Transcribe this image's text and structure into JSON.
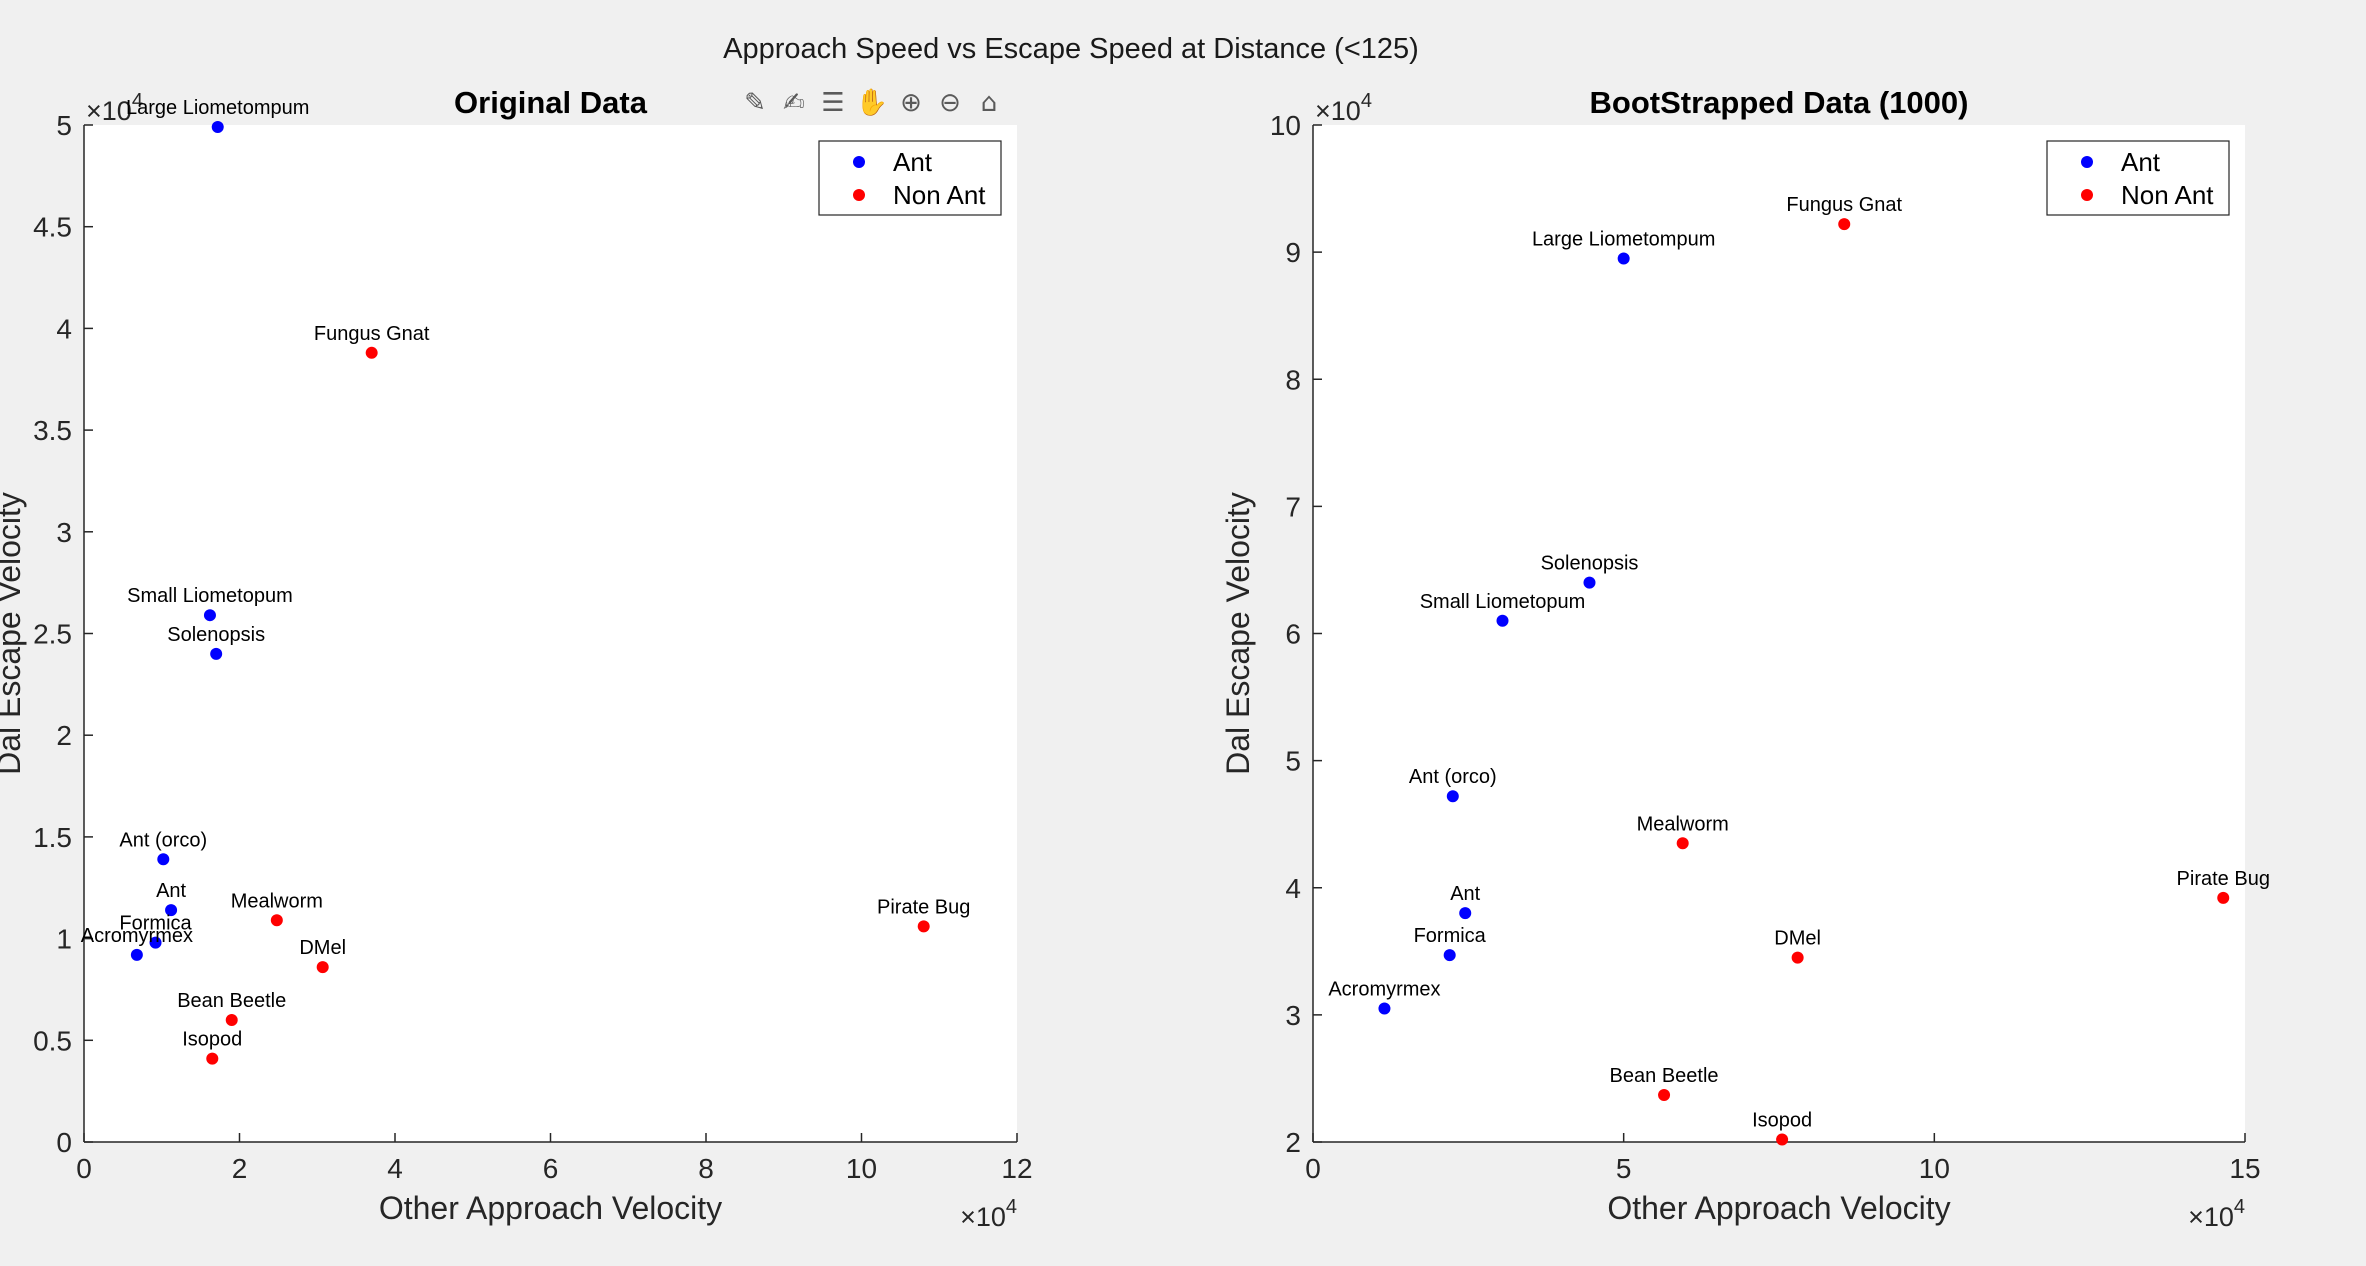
{
  "figure": {
    "title": "Approach Speed vs Escape Speed at Distance (<125)"
  },
  "toolbar": {
    "icons": [
      "brush-edit-icon",
      "brush-icon",
      "datatip-icon",
      "pan-icon",
      "zoom-in-icon",
      "zoom-out-icon",
      "home-icon"
    ],
    "glyphs": [
      "✎",
      "✍",
      "☰",
      "✋",
      "⊕",
      "⊖",
      "⌂"
    ]
  },
  "colors": {
    "ant": "#0000ff",
    "non_ant": "#ff0000",
    "axes_bg": "#ffffff",
    "figure_bg": "#f0f0f0"
  },
  "chart_data": [
    {
      "type": "scatter",
      "title": "Original Data",
      "xlabel": "Other Approach Velocity",
      "ylabel": "Dal Escape Velocity",
      "x_multiplier": "×10",
      "x_exponent": "4",
      "y_multiplier": "×10",
      "y_exponent": "4",
      "xlim": [
        0,
        12
      ],
      "ylim": [
        0,
        5
      ],
      "xticks": [
        0,
        2,
        4,
        6,
        8,
        10,
        12
      ],
      "xtick_labels": [
        "0",
        "2",
        "4",
        "6",
        "8",
        "10",
        "12"
      ],
      "yticks": [
        0,
        0.5,
        1,
        1.5,
        2,
        2.5,
        3,
        3.5,
        4,
        4.5,
        5
      ],
      "ytick_labels": [
        "0",
        "0.5",
        "1",
        "1.5",
        "2",
        "2.5",
        "3",
        "3.5",
        "4",
        "4.5",
        "5"
      ],
      "grid": false,
      "legend_position": "top-right",
      "legend": [
        "Ant",
        "Non Ant"
      ],
      "series": [
        {
          "name": "Ant",
          "color": "#0000ff",
          "points": [
            {
              "x": 1.72,
              "y": 4.99,
              "label": "Large Liometompum"
            },
            {
              "x": 1.62,
              "y": 2.59,
              "label": "Small Liometopum"
            },
            {
              "x": 1.7,
              "y": 2.4,
              "label": "Solenopsis"
            },
            {
              "x": 1.02,
              "y": 1.39,
              "label": "Ant (orco)"
            },
            {
              "x": 1.12,
              "y": 1.14,
              "label": "Ant"
            },
            {
              "x": 0.92,
              "y": 0.98,
              "label": "Formica"
            },
            {
              "x": 0.68,
              "y": 0.92,
              "label": "Acromyrmex"
            }
          ]
        },
        {
          "name": "Non Ant",
          "color": "#ff0000",
          "points": [
            {
              "x": 3.7,
              "y": 3.88,
              "label": "Fungus Gnat"
            },
            {
              "x": 2.48,
              "y": 1.09,
              "label": "Mealworm"
            },
            {
              "x": 10.8,
              "y": 1.06,
              "label": "Pirate Bug"
            },
            {
              "x": 3.07,
              "y": 0.86,
              "label": "DMel"
            },
            {
              "x": 1.9,
              "y": 0.6,
              "label": "Bean Beetle"
            },
            {
              "x": 1.65,
              "y": 0.41,
              "label": "Isopod"
            }
          ]
        }
      ]
    },
    {
      "type": "scatter",
      "title": "BootStrapped Data (1000)",
      "xlabel": "Other Approach Velocity",
      "ylabel": "Dal Escape Velocity",
      "x_multiplier": "×10",
      "x_exponent": "4",
      "y_multiplier": "×10",
      "y_exponent": "4",
      "xlim": [
        0,
        15
      ],
      "ylim": [
        2,
        10
      ],
      "xticks": [
        0,
        5,
        10,
        15
      ],
      "xtick_labels": [
        "0",
        "5",
        "10",
        "15"
      ],
      "yticks": [
        2,
        3,
        4,
        5,
        6,
        7,
        8,
        9,
        10
      ],
      "ytick_labels": [
        "2",
        "3",
        "4",
        "5",
        "6",
        "7",
        "8",
        "9",
        "10"
      ],
      "grid": false,
      "legend_position": "top-right",
      "legend": [
        "Ant",
        "Non Ant"
      ],
      "series": [
        {
          "name": "Ant",
          "color": "#0000ff",
          "points": [
            {
              "x": 5.0,
              "y": 8.95,
              "label": "Large Liometompum"
            },
            {
              "x": 4.45,
              "y": 6.4,
              "label": "Solenopsis"
            },
            {
              "x": 3.05,
              "y": 6.1,
              "label": "Small Liometopum"
            },
            {
              "x": 2.25,
              "y": 4.72,
              "label": "Ant (orco)"
            },
            {
              "x": 2.45,
              "y": 3.8,
              "label": "Ant"
            },
            {
              "x": 2.2,
              "y": 3.47,
              "label": "Formica"
            },
            {
              "x": 1.15,
              "y": 3.05,
              "label": "Acromyrmex"
            }
          ]
        },
        {
          "name": "Non Ant",
          "color": "#ff0000",
          "points": [
            {
              "x": 8.55,
              "y": 9.22,
              "label": "Fungus Gnat"
            },
            {
              "x": 5.95,
              "y": 4.35,
              "label": "Mealworm"
            },
            {
              "x": 14.65,
              "y": 3.92,
              "label": "Pirate Bug"
            },
            {
              "x": 7.8,
              "y": 3.45,
              "label": "DMel"
            },
            {
              "x": 5.65,
              "y": 2.37,
              "label": "Bean Beetle"
            },
            {
              "x": 7.55,
              "y": 2.02,
              "label": "Isopod"
            }
          ]
        }
      ]
    }
  ]
}
